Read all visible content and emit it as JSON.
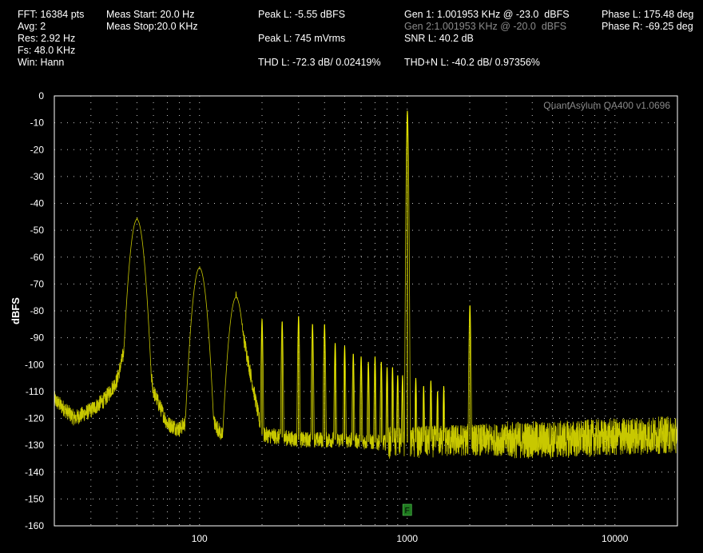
{
  "header": {
    "fft": "FFT: 16384 pts",
    "avg": "Avg: 2",
    "res": "Res: 2.92 Hz",
    "fs": "Fs: 48.0 KHz",
    "win": "Win: Hann",
    "meas_start": "Meas Start: 20.0 Hz",
    "meas_stop": "Meas Stop:20.0 KHz",
    "peak_l_dbfs": "Peak L: -5.55 dBFS",
    "peak_l_mvrms": "Peak L: 745 mVrms",
    "thd_l": "THD L: -72.3 dB/ 0.02419%",
    "gen1": "Gen 1: 1.001953 KHz @ -23.0  dBFS",
    "gen2": "Gen 2:1.001953 KHz @ -20.0  dBFS",
    "snr_l": "SNR L: 40.2 dB",
    "thdn_l": "THD+N L: -40.2 dB/ 0.97356%",
    "phase_l": "Phase L: 175.48 deg",
    "phase_r": "Phase R: -69.25 deg"
  },
  "watermark": "QuantAsylum QA400 v1.0696",
  "marker_label": "F",
  "colors": {
    "background": "#000000",
    "trace": "#ffff00",
    "trace_dim": "#c8c800",
    "grid": "#c8c8c8",
    "marker": "#1f7a1f"
  },
  "chart_data": {
    "type": "line",
    "title": "",
    "xlabel": "",
    "ylabel": "dBFS",
    "x_scale": "log",
    "xlim": [
      20,
      20000
    ],
    "ylim": [
      -160,
      0
    ],
    "x_ticks": [
      100,
      1000,
      10000
    ],
    "y_ticks": [
      0,
      -10,
      -20,
      -30,
      -40,
      -50,
      -60,
      -70,
      -80,
      -90,
      -100,
      -110,
      -120,
      -130,
      -140,
      -150,
      -160
    ],
    "grid": true,
    "marker_frequency": 1000,
    "series": [
      {
        "name": "",
        "noise_floor": [
          [
            20,
            -113
          ],
          [
            25,
            -120
          ],
          [
            30,
            -117
          ],
          [
            35,
            -113
          ],
          [
            40,
            -106
          ],
          [
            45,
            -90
          ],
          [
            50,
            -46
          ],
          [
            55,
            -90
          ],
          [
            60,
            -110
          ],
          [
            70,
            -122
          ],
          [
            80,
            -124
          ],
          [
            90,
            -120
          ],
          [
            100,
            -64
          ],
          [
            110,
            -118
          ],
          [
            130,
            -127
          ],
          [
            150,
            -75
          ],
          [
            200,
            -126
          ],
          [
            300,
            -128
          ],
          [
            500,
            -128
          ],
          [
            700,
            -129
          ],
          [
            1000,
            -129
          ],
          [
            2000,
            -128
          ],
          [
            5000,
            -128
          ],
          [
            10000,
            -127
          ],
          [
            20000,
            -126
          ]
        ],
        "peaks": [
          {
            "f": 50,
            "db": -46
          },
          {
            "f": 100,
            "db": -64
          },
          {
            "f": 150,
            "db": -75
          },
          {
            "f": 200,
            "db": -83
          },
          {
            "f": 250,
            "db": -84
          },
          {
            "f": 300,
            "db": -82
          },
          {
            "f": 350,
            "db": -85
          },
          {
            "f": 400,
            "db": -85
          },
          {
            "f": 450,
            "db": -92
          },
          {
            "f": 500,
            "db": -93
          },
          {
            "f": 550,
            "db": -96
          },
          {
            "f": 600,
            "db": -97
          },
          {
            "f": 650,
            "db": -99
          },
          {
            "f": 700,
            "db": -97
          },
          {
            "f": 750,
            "db": -99
          },
          {
            "f": 800,
            "db": -101
          },
          {
            "f": 850,
            "db": -101
          },
          {
            "f": 900,
            "db": -104
          },
          {
            "f": 950,
            "db": -104
          },
          {
            "f": 1002,
            "db": -5.55
          },
          {
            "f": 1100,
            "db": -105
          },
          {
            "f": 1200,
            "db": -108
          },
          {
            "f": 1300,
            "db": -106
          },
          {
            "f": 1400,
            "db": -110
          },
          {
            "f": 1500,
            "db": -108
          },
          {
            "f": 2004,
            "db": -78
          }
        ]
      }
    ]
  }
}
